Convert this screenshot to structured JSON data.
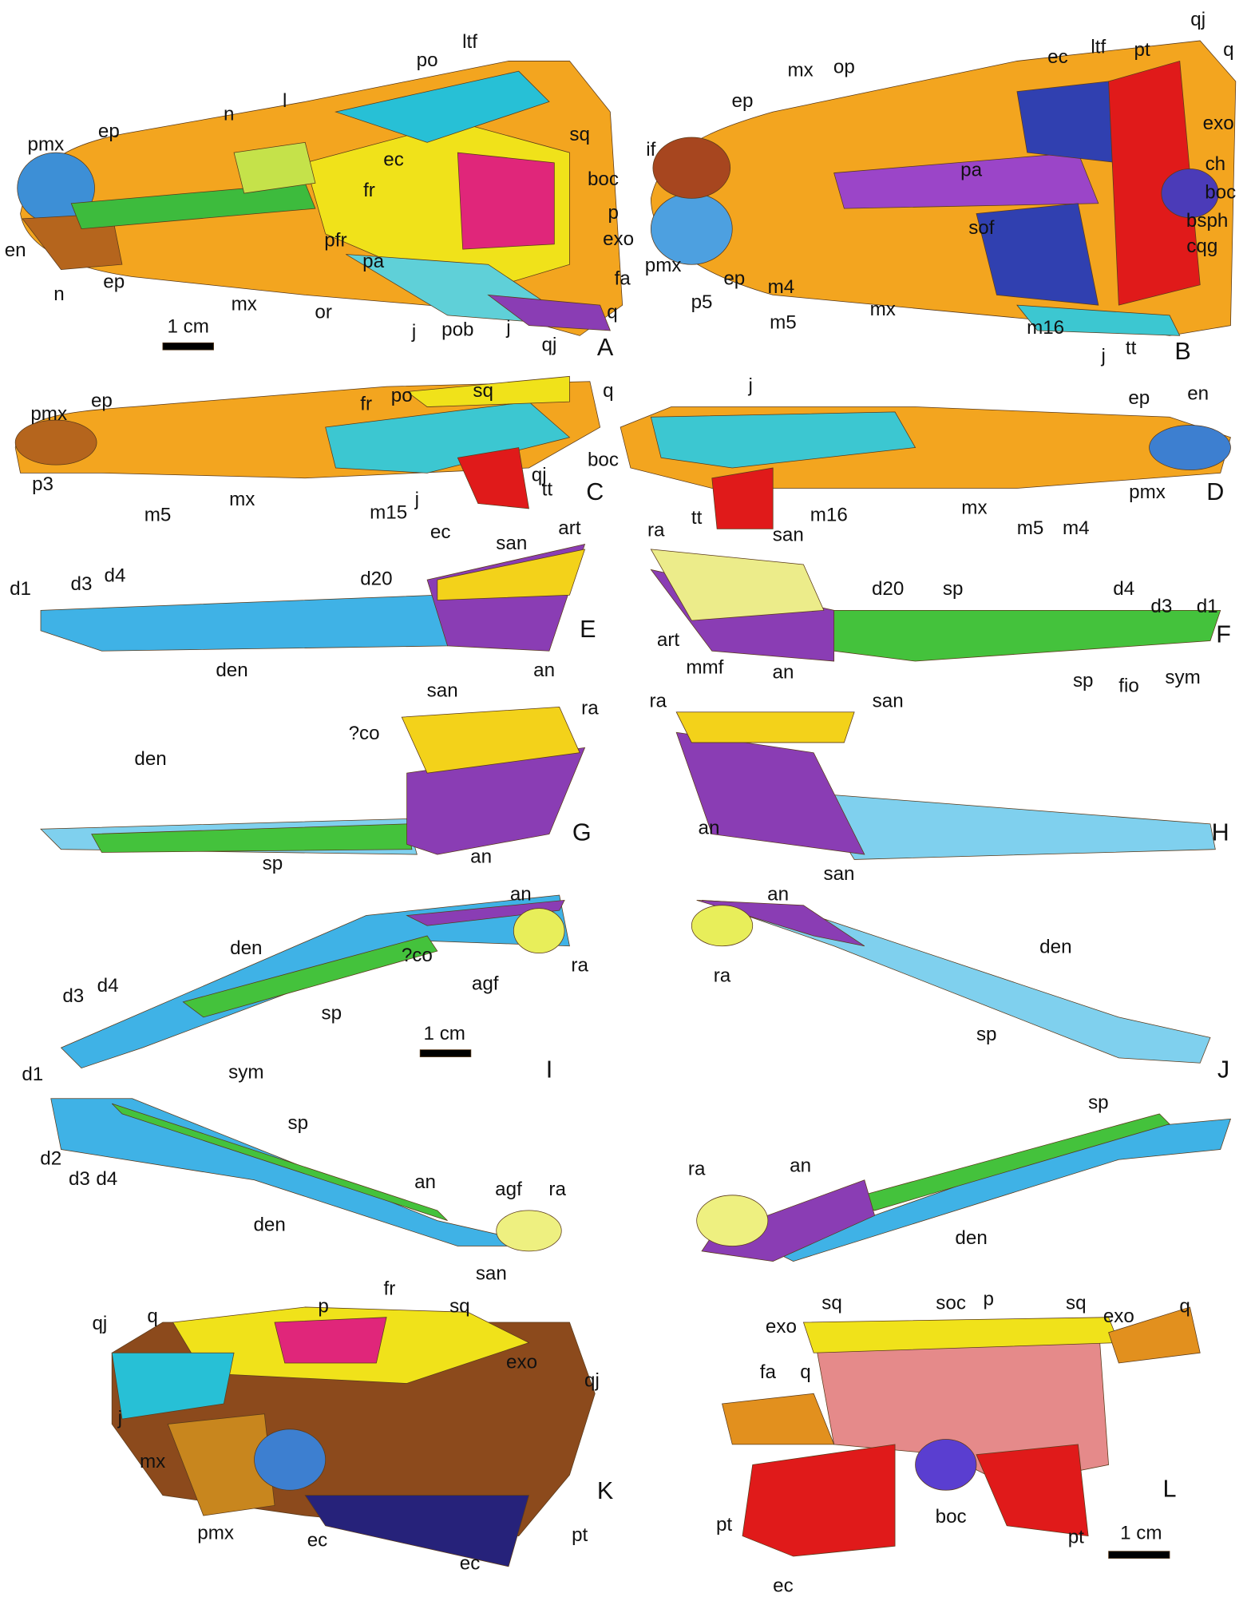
{
  "panels": [
    {
      "letter": "A",
      "labels": [
        "pmx",
        "ep",
        "n",
        "l",
        "po",
        "ltf",
        "fr",
        "ec",
        "sq",
        "boc",
        "p",
        "exo",
        "fa",
        "q",
        "qj",
        "j",
        "pob",
        "j",
        "or",
        "pfr",
        "pa",
        "mx",
        "ep",
        "n",
        "en",
        "1 cm"
      ]
    },
    {
      "letter": "B",
      "labels": [
        "ep",
        "mx",
        "op",
        "ec",
        "ltf",
        "pt",
        "qj",
        "q",
        "exo",
        "if",
        "pa",
        "ch",
        "boc",
        "bsph",
        "sof",
        "cqg",
        "pmx",
        "p5",
        "ep",
        "m4",
        "m5",
        "mx",
        "m16",
        "j",
        "tt"
      ]
    },
    {
      "letter": "C",
      "labels": [
        "fr",
        "po",
        "sq",
        "q",
        "pmx",
        "ep",
        "boc",
        "qj",
        "tt",
        "p3",
        "m5",
        "mx",
        "m15",
        "j",
        "ec"
      ]
    },
    {
      "letter": "D",
      "labels": [
        "j",
        "ep",
        "en",
        "tt",
        "m16",
        "mx",
        "m5",
        "m4",
        "pmx"
      ]
    },
    {
      "letter": "E",
      "labels": [
        "san",
        "art",
        "d1",
        "d3",
        "d4",
        "d20",
        "den",
        "an"
      ]
    },
    {
      "letter": "F",
      "labels": [
        "ra",
        "san",
        "d20",
        "sp",
        "d4",
        "d3",
        "d1",
        "art",
        "mmf",
        "an",
        "sp",
        "fio",
        "sym"
      ]
    },
    {
      "letter": "G",
      "labels": [
        "san",
        "ra",
        "?co",
        "den",
        "sp",
        "an"
      ]
    },
    {
      "letter": "H",
      "labels": [
        "ra",
        "san",
        "an"
      ]
    },
    {
      "letter": "I",
      "labels": [
        "an",
        "den",
        "ra",
        "d3",
        "d4",
        "?co",
        "agf",
        "sp",
        "1 cm"
      ]
    },
    {
      "letter": "J",
      "labels": [
        "an",
        "san",
        "den",
        "ra",
        "sp"
      ]
    },
    {
      "labels": [
        "d1",
        "sym",
        "sp",
        "d2",
        "d3",
        "d4",
        "an",
        "agf",
        "ra",
        "den",
        "san"
      ]
    },
    {
      "labels": [
        "sp",
        "ra",
        "an",
        "den"
      ]
    },
    {
      "letter": "K",
      "labels": [
        "fr",
        "p",
        "sq",
        "qj",
        "q",
        "exo",
        "qj",
        "j",
        "mx",
        "pmx",
        "ec",
        "ec",
        "pt"
      ]
    },
    {
      "letter": "L",
      "labels": [
        "sq",
        "soc",
        "p",
        "sq",
        "exo",
        "q",
        "exo",
        "fa",
        "q",
        "pt",
        "boc",
        "pt",
        "1 cm",
        "ec"
      ]
    }
  ]
}
